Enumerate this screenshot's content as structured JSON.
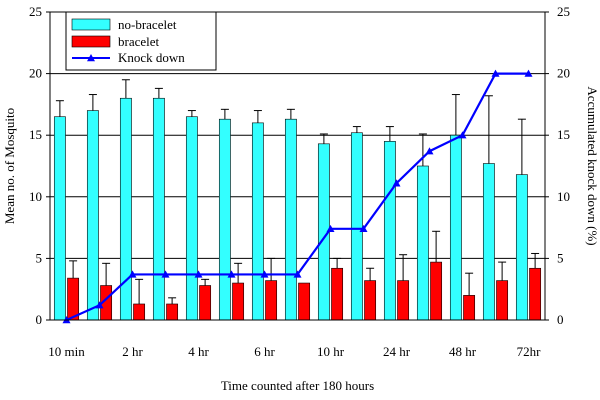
{
  "chart_data": {
    "type": "bar",
    "xlabel": "Time counted after 180 hours",
    "ylabel": "Mean no. of Mosquito",
    "y2label": "Accumulated knock down (%)",
    "ylim": [
      0,
      25
    ],
    "y2lim": [
      0,
      25
    ],
    "yticks": [
      "0",
      "5",
      "10",
      "15",
      "20",
      "25"
    ],
    "y2ticks": [
      "0",
      "5",
      "10",
      "15",
      "20",
      "25"
    ],
    "x_tick_labels": [
      "10 min",
      "2 hr",
      "4 hr",
      "6 hr",
      "10 hr",
      "24 hr",
      "48 hr",
      "72hr"
    ],
    "grid": "horizontal",
    "legend_position": "top-left",
    "series": [
      {
        "name": "no-bracelet",
        "kind": "bar",
        "color": "#33ffff",
        "values": [
          16.5,
          17.0,
          18.0,
          18.0,
          16.5,
          16.3,
          16.0,
          16.3,
          14.3,
          15.2,
          14.5,
          12.5,
          15.0,
          12.7,
          11.8
        ],
        "errors": [
          1.3,
          1.3,
          1.5,
          0.8,
          0.5,
          0.8,
          1.0,
          0.8,
          0.8,
          0.5,
          1.2,
          2.6,
          3.3,
          5.5,
          4.5
        ]
      },
      {
        "name": "bracelet",
        "kind": "bar",
        "color": "#ff0000",
        "values": [
          3.4,
          2.8,
          1.3,
          1.3,
          2.8,
          3.0,
          3.2,
          3.0,
          4.2,
          3.2,
          3.2,
          4.7,
          2.0,
          3.2,
          4.2
        ],
        "errors": [
          1.4,
          1.8,
          2.0,
          0.5,
          0.5,
          1.6,
          1.8,
          0.0,
          0.8,
          1.0,
          2.1,
          2.5,
          1.8,
          1.5,
          1.2
        ]
      },
      {
        "name": "Knock down",
        "kind": "line",
        "axis": "right",
        "color": "#0000ff",
        "values": [
          0.0,
          1.2,
          3.7,
          3.7,
          3.7,
          3.7,
          3.7,
          3.7,
          7.4,
          7.4,
          11.1,
          13.7,
          15.0,
          20.0,
          20.0
        ]
      }
    ]
  }
}
